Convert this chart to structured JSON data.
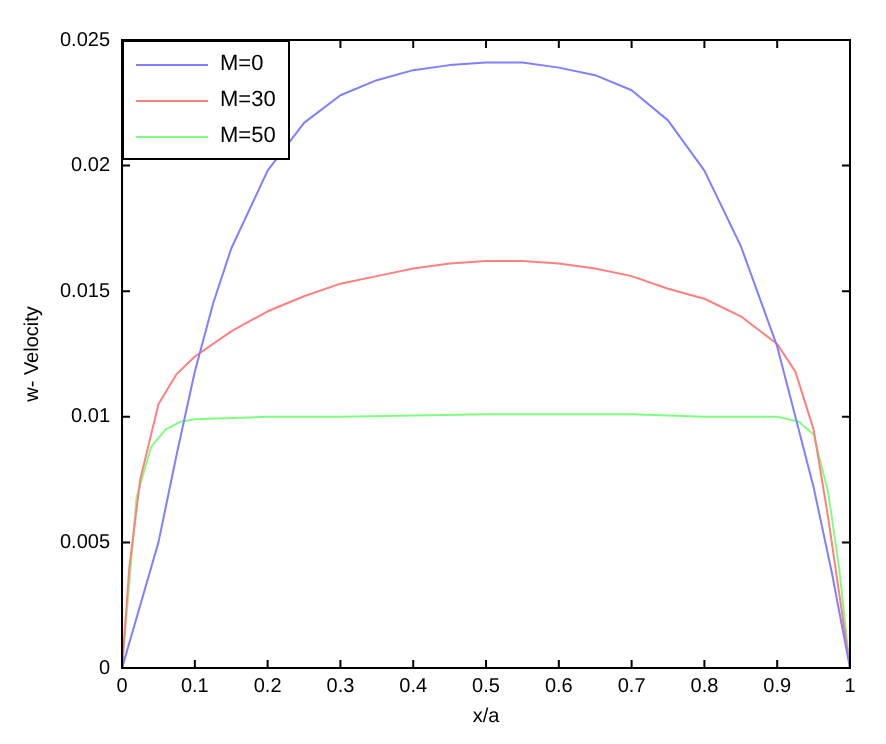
{
  "chart_data": {
    "type": "line",
    "xlabel": "x/a",
    "ylabel": "w- Velocity",
    "xlim": [
      0,
      1
    ],
    "ylim": [
      0,
      0.025
    ],
    "xticks": [
      0,
      0.1,
      0.2,
      0.3,
      0.4,
      0.5,
      0.6,
      0.7,
      0.8,
      0.9,
      1
    ],
    "yticks": [
      0,
      0.005,
      0.01,
      0.015,
      0.02,
      0.025
    ],
    "grid": false,
    "legend": "top left",
    "marker": "none",
    "line_style": "solid",
    "series": [
      {
        "name": "M=0",
        "color": "#7f7fff",
        "x": [
          0,
          0.025,
          0.05,
          0.075,
          0.1,
          0.125,
          0.15,
          0.2,
          0.25,
          0.3,
          0.35,
          0.4,
          0.45,
          0.5,
          0.55,
          0.6,
          0.65,
          0.7,
          0.75,
          0.8,
          0.85,
          0.9,
          0.925,
          0.95,
          0.975,
          1
        ],
        "values": [
          0,
          0.0025,
          0.005,
          0.0085,
          0.0118,
          0.0145,
          0.0167,
          0.0198,
          0.0217,
          0.0228,
          0.0234,
          0.0238,
          0.024,
          0.0241,
          0.0241,
          0.0239,
          0.0236,
          0.023,
          0.0218,
          0.0198,
          0.0168,
          0.0128,
          0.01,
          0.0072,
          0.0038,
          0
        ]
      },
      {
        "name": "M=30",
        "color": "#ff7f7f",
        "x": [
          0,
          0.01,
          0.025,
          0.05,
          0.075,
          0.1,
          0.15,
          0.2,
          0.25,
          0.3,
          0.35,
          0.4,
          0.45,
          0.5,
          0.55,
          0.6,
          0.65,
          0.7,
          0.75,
          0.8,
          0.85,
          0.9,
          0.925,
          0.95,
          0.97,
          0.985,
          1
        ],
        "values": [
          0,
          0.004,
          0.0075,
          0.0105,
          0.0117,
          0.0124,
          0.0134,
          0.0142,
          0.0148,
          0.0153,
          0.0156,
          0.0159,
          0.0161,
          0.0162,
          0.0162,
          0.0161,
          0.0159,
          0.0156,
          0.0151,
          0.0147,
          0.014,
          0.0129,
          0.0118,
          0.0095,
          0.006,
          0.003,
          0
        ]
      },
      {
        "name": "M=50",
        "color": "#7fff7f",
        "x": [
          0,
          0.02,
          0.04,
          0.06,
          0.08,
          0.1,
          0.2,
          0.3,
          0.5,
          0.7,
          0.8,
          0.9,
          0.93,
          0.95,
          0.97,
          0.985,
          1
        ],
        "values": [
          0,
          0.0068,
          0.0088,
          0.0095,
          0.0098,
          0.0099,
          0.01,
          0.01,
          0.0101,
          0.0101,
          0.01,
          0.01,
          0.0098,
          0.0093,
          0.007,
          0.004,
          0
        ]
      }
    ]
  }
}
